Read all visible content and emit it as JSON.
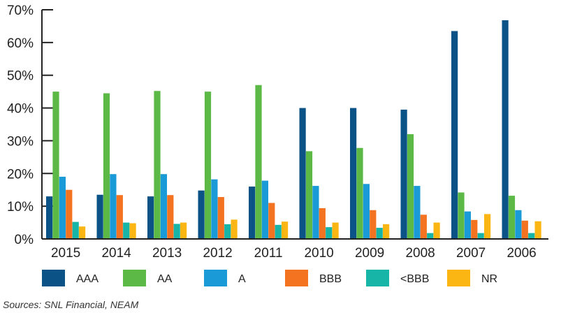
{
  "chart_data": {
    "type": "bar",
    "title": "",
    "xlabel": "",
    "ylabel": "",
    "ylim": [
      0,
      70
    ],
    "yticks": [
      0,
      10,
      20,
      30,
      40,
      50,
      60,
      70
    ],
    "ytick_labels": [
      "0%",
      "10%",
      "20%",
      "30%",
      "40%",
      "50%",
      "60%",
      "70%"
    ],
    "grid": false,
    "legend_position": "bottom",
    "categories": [
      "2015",
      "2014",
      "2013",
      "2012",
      "2011",
      "2010",
      "2009",
      "2008",
      "2007",
      "2006"
    ],
    "series": [
      {
        "name": "AAA",
        "color": "#0b5387",
        "values": [
          13,
          13.5,
          13,
          14.8,
          16,
          40,
          40,
          39.5,
          63.5,
          66.8
        ]
      },
      {
        "name": "AA",
        "color": "#5cb946",
        "values": [
          45,
          44.5,
          45.2,
          45,
          47,
          26.8,
          27.8,
          32,
          14.2,
          13.2
        ]
      },
      {
        "name": "A",
        "color": "#1a9ad6",
        "values": [
          19,
          19.8,
          19.8,
          18.2,
          17.8,
          16.2,
          16.8,
          16.2,
          8.4,
          8.8
        ]
      },
      {
        "name": "BBB",
        "color": "#f37321",
        "values": [
          15,
          13.4,
          13.4,
          12.8,
          11,
          9.4,
          8.8,
          7.4,
          5.8,
          5.6
        ]
      },
      {
        "name": "<BBB",
        "color": "#17b5a7",
        "values": [
          5.2,
          5,
          4.6,
          4.5,
          4.3,
          3.6,
          3.4,
          1.8,
          1.8,
          1.8
        ]
      },
      {
        "name": "NR",
        "color": "#fcb614",
        "values": [
          3.8,
          4.8,
          5,
          5.9,
          5.3,
          5,
          4.5,
          5,
          7.6,
          5.4
        ]
      }
    ]
  },
  "source_text": "Sources: SNL Financial, NEAM"
}
